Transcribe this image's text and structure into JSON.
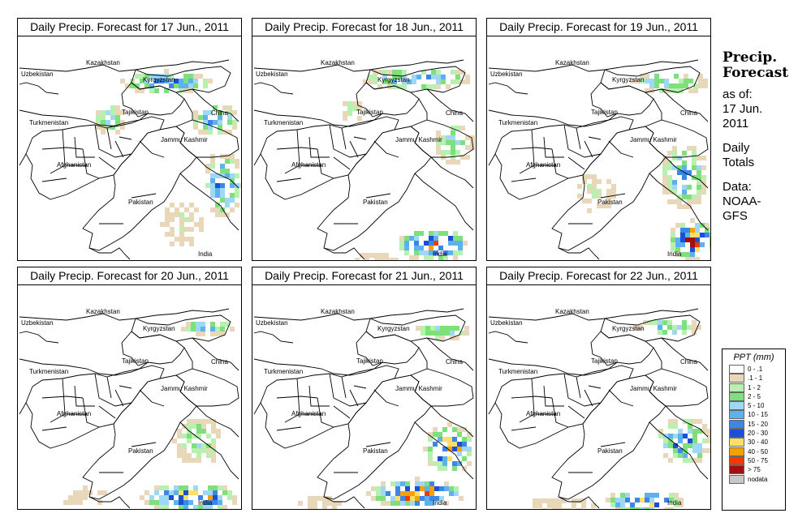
{
  "panels": [
    {
      "title": "Daily Precip. Forecast for  17 Jun., 2011"
    },
    {
      "title": "Daily Precip. Forecast for  18 Jun., 2011"
    },
    {
      "title": "Daily Precip. Forecast for  19 Jun., 2011"
    },
    {
      "title": "Daily Precip. Forecast for  20 Jun., 2011"
    },
    {
      "title": "Daily Precip. Forecast for  21 Jun., 2011"
    },
    {
      "title": "Daily Precip. Forecast for  22 Jun., 2011"
    }
  ],
  "map_labels": {
    "kazakhstan": "Kazakhstan",
    "uzbekistan": "Uzbekistan",
    "kyrgyzstan": "Kyrgyzstan",
    "tajikistan": "Tajikistan",
    "turkmenistan": "Turkmenistan",
    "china": "China",
    "jammu_kashmir": "Jammu Kashmir",
    "afghanistan": "Afghanistan",
    "pakistan": "Pakistan",
    "india": "India"
  },
  "sidebar": {
    "title_line1": "Precip.",
    "title_line2": "Forecast",
    "asof_line1": "as of:",
    "asof_line2": "17 Jun.",
    "asof_line3": "2011",
    "totals_line1": "Daily",
    "totals_line2": "Totals",
    "source_line1": "Data:",
    "source_line2": "NOAA-",
    "source_line3": "GFS"
  },
  "legend": {
    "title": "PPT (mm)",
    "items": [
      {
        "label": "0 - .1",
        "color": "#ffffff"
      },
      {
        "label": ".1 - 1",
        "color": "#e8d7b8"
      },
      {
        "label": "1 - 2",
        "color": "#b8f0b0"
      },
      {
        "label": "2 - 5",
        "color": "#7de07a"
      },
      {
        "label": "5 - 10",
        "color": "#9ed8f5"
      },
      {
        "label": "10 - 15",
        "color": "#5fb0ee"
      },
      {
        "label": "15 - 20",
        "color": "#3c86e6"
      },
      {
        "label": "20 - 30",
        "color": "#1a4fd8"
      },
      {
        "label": "30 - 40",
        "color": "#ffe066"
      },
      {
        "label": "40 - 50",
        "color": "#f5a100"
      },
      {
        "label": "50 - 75",
        "color": "#f03a00"
      },
      {
        "label": "> 75",
        "color": "#a01010"
      },
      {
        "label": "nodata",
        "color": "#c8c8c8"
      }
    ]
  }
}
